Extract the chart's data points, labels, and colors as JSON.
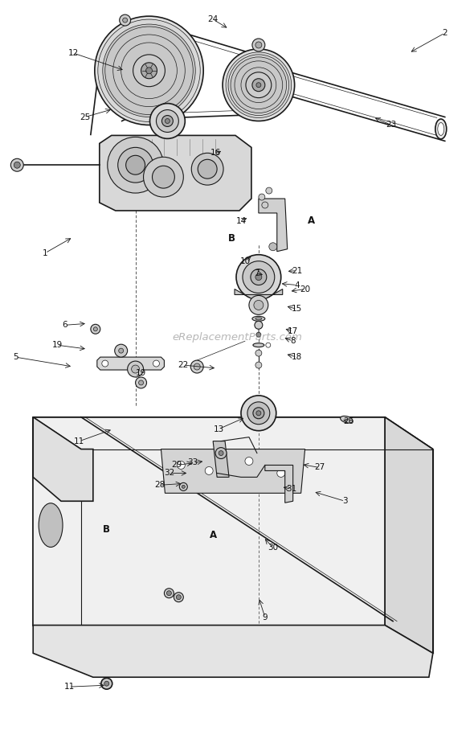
{
  "bg_color": "#ffffff",
  "line_color": "#1a1a1a",
  "fig_width": 5.9,
  "fig_height": 9.34,
  "dpi": 100,
  "watermark": "eReplacementParts.com",
  "labels": [
    [
      "1",
      55,
      620
    ],
    [
      "2",
      555,
      895
    ],
    [
      "3",
      430,
      310
    ],
    [
      "4",
      370,
      580
    ],
    [
      "5",
      18,
      490
    ],
    [
      "6",
      80,
      530
    ],
    [
      "7",
      320,
      595
    ],
    [
      "8",
      365,
      510
    ],
    [
      "9",
      330,
      165
    ],
    [
      "10",
      305,
      610
    ],
    [
      "11",
      98,
      385
    ],
    [
      "11",
      85,
      78
    ],
    [
      "12",
      90,
      870
    ],
    [
      "13",
      272,
      400
    ],
    [
      "14",
      300,
      660
    ],
    [
      "15",
      370,
      550
    ],
    [
      "16",
      268,
      745
    ],
    [
      "17",
      365,
      522
    ],
    [
      "18",
      370,
      490
    ],
    [
      "19",
      70,
      505
    ],
    [
      "19",
      175,
      470
    ],
    [
      "20",
      380,
      575
    ],
    [
      "21",
      370,
      598
    ],
    [
      "22",
      228,
      480
    ],
    [
      "23",
      488,
      780
    ],
    [
      "24",
      265,
      912
    ],
    [
      "25",
      105,
      790
    ],
    [
      "26",
      435,
      410
    ],
    [
      "27",
      398,
      352
    ],
    [
      "28",
      198,
      330
    ],
    [
      "29",
      220,
      355
    ],
    [
      "30",
      340,
      252
    ],
    [
      "31",
      363,
      325
    ],
    [
      "32",
      210,
      345
    ],
    [
      "33",
      240,
      358
    ],
    [
      "A",
      388,
      660
    ],
    [
      "B",
      288,
      638
    ],
    [
      "A",
      265,
      268
    ],
    [
      "B",
      132,
      275
    ]
  ],
  "leader_lines": [
    [
      90,
      870,
      155,
      848
    ],
    [
      55,
      620,
      90,
      640
    ],
    [
      555,
      895,
      510,
      870
    ],
    [
      430,
      310,
      390,
      322
    ],
    [
      370,
      580,
      348,
      582
    ],
    [
      18,
      490,
      90,
      478
    ],
    [
      80,
      530,
      108,
      532
    ],
    [
      320,
      595,
      330,
      592
    ],
    [
      365,
      510,
      352,
      515
    ],
    [
      330,
      165,
      322,
      190
    ],
    [
      305,
      610,
      315,
      618
    ],
    [
      98,
      385,
      140,
      400
    ],
    [
      85,
      78,
      132,
      80
    ],
    [
      272,
      400,
      306,
      415
    ],
    [
      300,
      660,
      310,
      665
    ],
    [
      370,
      550,
      355,
      554
    ],
    [
      268,
      745,
      278,
      748
    ],
    [
      365,
      522,
      353,
      526
    ],
    [
      370,
      490,
      355,
      494
    ],
    [
      70,
      505,
      108,
      500
    ],
    [
      380,
      575,
      360,
      572
    ],
    [
      370,
      598,
      356,
      597
    ],
    [
      228,
      480,
      270,
      476
    ],
    [
      488,
      780,
      465,
      790
    ],
    [
      265,
      912,
      285,
      900
    ],
    [
      105,
      790,
      140,
      800
    ],
    [
      435,
      410,
      425,
      412
    ],
    [
      398,
      352,
      375,
      356
    ],
    [
      198,
      330,
      228,
      332
    ],
    [
      220,
      355,
      242,
      358
    ],
    [
      340,
      252,
      328,
      265
    ],
    [
      363,
      325,
      350,
      328
    ],
    [
      210,
      345,
      235,
      345
    ],
    [
      240,
      358,
      255,
      360
    ]
  ]
}
